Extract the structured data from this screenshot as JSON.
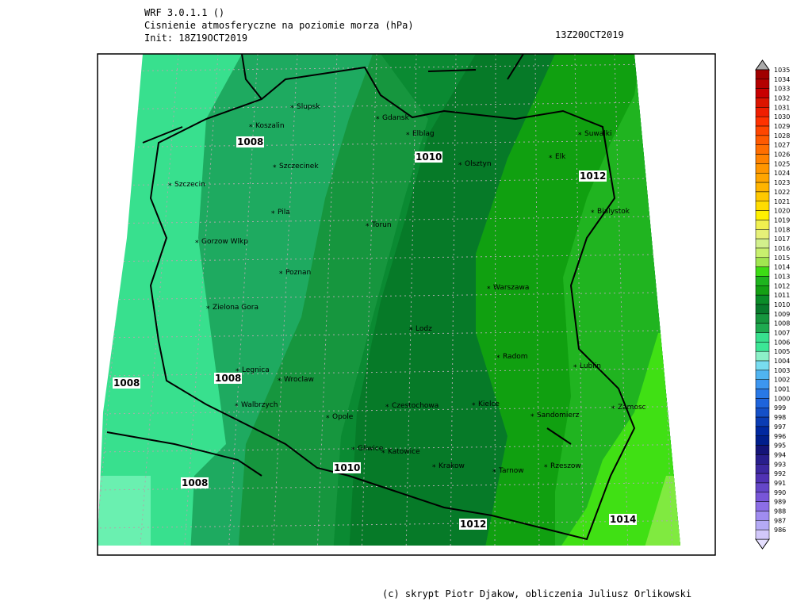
{
  "header": {
    "model": "WRF 3.0.1.1 ()",
    "title": "Cisnienie atmosferyczne na poziomie morza (hPa)",
    "init": "Init: 18Z19OCT2019",
    "valid": "13Z20OCT2019"
  },
  "cities": [
    "Slupsk",
    "Koszalin",
    "Gdansk",
    "Elblag",
    "Suwalki",
    "Szczecinek",
    "Olsztyn",
    "Elk",
    "Szczecin",
    "Pila",
    "Bialystok",
    "Torun",
    "Gorzow Wlkp",
    "Poznan",
    "Warszawa",
    "Zielona Gora",
    "Lodz",
    "Radom",
    "Legnica",
    "Wroclaw",
    "Lublin",
    "Walbrzych",
    "Czestochowa",
    "Kielce",
    "Opole",
    "Sandomierz",
    "Zamosc",
    "Gliwice",
    "Katowice",
    "Krakow",
    "Tarnow",
    "Rzeszow"
  ],
  "contour_labels": [
    "1008",
    "1008",
    "1008",
    "1008",
    "1010",
    "1010",
    "1012",
    "1012",
    "1014"
  ],
  "colorbar": {
    "labels": [
      1035,
      1034,
      1033,
      1032,
      1031,
      1030,
      1029,
      1028,
      1027,
      1026,
      1025,
      1024,
      1023,
      1022,
      1021,
      1020,
      1019,
      1018,
      1017,
      1016,
      1015,
      1014,
      1013,
      1012,
      1011,
      1010,
      1009,
      1008,
      1007,
      1006,
      1005,
      1004,
      1003,
      1002,
      1001,
      1000,
      999,
      998,
      997,
      996,
      995,
      994,
      993,
      992,
      991,
      990,
      989,
      988,
      987,
      986
    ],
    "colors": [
      "#a00000",
      "#b40000",
      "#c80000",
      "#dc1400",
      "#f01e00",
      "#ff3200",
      "#ff4600",
      "#ff5a00",
      "#ff6e00",
      "#ff8200",
      "#ff9600",
      "#ffa500",
      "#ffb400",
      "#ffc800",
      "#ffdc00",
      "#fff000",
      "#f0f050",
      "#e6f078",
      "#d2f08c",
      "#c8f06e",
      "#a0e650",
      "#3cdc14",
      "#1eb41e",
      "#14a014",
      "#0a8c28",
      "#087a2c",
      "#16963e",
      "#1eaa50",
      "#38e08e",
      "#3ce696",
      "#8cf0c8",
      "#78dcf0",
      "#50b4f0",
      "#3c96f0",
      "#2878e6",
      "#1e64dc",
      "#1450c8",
      "#0a3cb4",
      "#0028a0",
      "#001e8c",
      "#141478",
      "#281e8c",
      "#3c28a0",
      "#5032b4",
      "#6446c8",
      "#7856d8",
      "#8c6ee6",
      "#a08cf0",
      "#b4aaf5",
      "#d2c8fa"
    ]
  },
  "footer": "(c) skrypt Piotr Djakow, obliczenia Juliusz Orlikowski"
}
